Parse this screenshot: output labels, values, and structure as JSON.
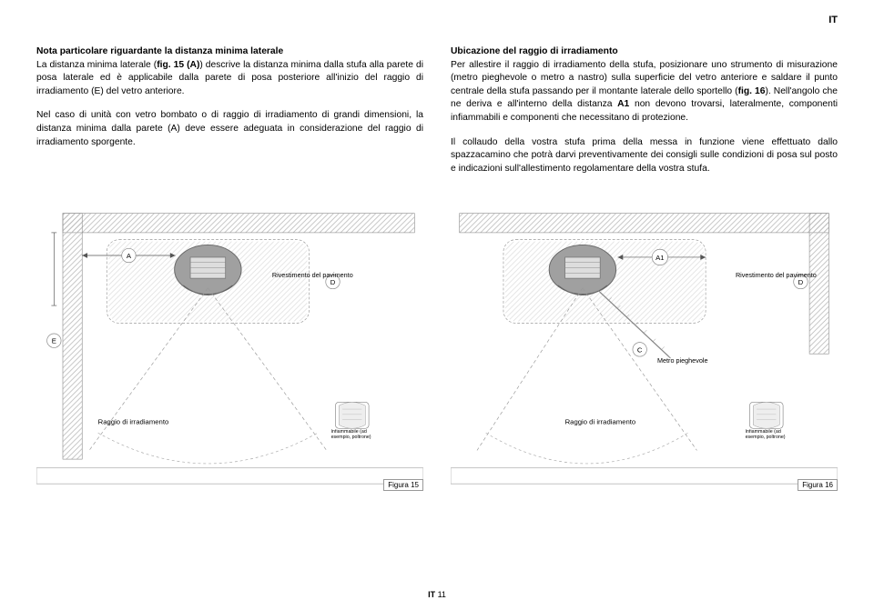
{
  "page_marker": "IT",
  "footer_page": "IT 11",
  "left_col": {
    "heading": "Nota particolare riguardante la distanza minima laterale",
    "p1_a": "La distanza minima laterale (",
    "p1_b": "fig. 15 (A)",
    "p1_c": ") descrive la distanza minima dalla stufa alla parete di posa laterale ed è applicabile dalla parete di posa posteriore all'inizio del raggio di irradiamento (E) del vetro anteriore.",
    "p2": "Nel caso di unità con vetro bombato o di raggio di irradiamento di grandi dimensioni, la distanza minima dalla parete (A) deve essere adeguata in considerazione del raggio di irradiamento sporgente."
  },
  "right_col": {
    "heading": "Ubicazione del raggio di irradiamento",
    "p1_a": "Per allestire il raggio di irradiamento della stufa, posizionare uno strumento di misurazione (metro pieghevole o metro a nastro) sulla superficie del vetro anteriore e saldare il punto centrale della stufa passando per il montante laterale dello sportello (",
    "p1_b": "fig. 16",
    "p1_c": "). Nell'angolo che ne deriva e all'interno della distanza ",
    "p1_d": "A1",
    "p1_e": " non devono trovarsi, lateralmente, componenti infiammabili e componenti che necessitano di protezione.",
    "p2": "Il collaudo della vostra stufa prima della messa in funzione viene effettuato dallo spazzacamino che potrà darvi preventivamente dei consigli sulle condizioni di posa sul posto e indicazioni sull'allestimento regolamentare della vostra stufa."
  },
  "fig15": {
    "caption": "Figura 15",
    "label_A": "A",
    "label_E": "E",
    "label_D": "D",
    "label_rivestimento": "Rivestimento del pavimento",
    "label_raggio": "Raggio di irradiamento",
    "label_infiammabile": "Infiammabile (ad esempio, poltrone)",
    "colors": {
      "wall_hatch": "#cccccc",
      "floor_hatch": "#d0d0d0",
      "stove_body": "#9a9a9a",
      "line": "#555555",
      "dash": "#888888",
      "arc_dash": "#aaaaaa",
      "label_bg": "#ffffff",
      "label_border": "#888888"
    }
  },
  "fig16": {
    "caption": "Figura 16",
    "label_A1": "A1",
    "label_C": "C",
    "label_D": "D",
    "label_rivestimento": "Rivestimento del pavimento",
    "label_metro": "Metro pieghevole",
    "label_raggio": "Raggio di irradiamento",
    "label_infiammabile": "Infiammabile (ad esempio, poltrone)",
    "colors": {
      "wall_hatch": "#cccccc",
      "floor_hatch": "#d0d0d0",
      "stove_body": "#9a9a9a",
      "line": "#555555",
      "dash": "#888888",
      "arc_dash": "#aaaaaa",
      "label_bg": "#ffffff",
      "label_border": "#888888"
    }
  }
}
